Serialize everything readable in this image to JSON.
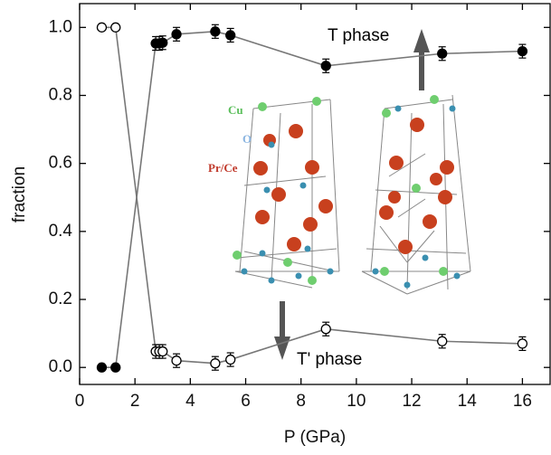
{
  "chart_data": {
    "type": "line",
    "xlabel": "P (GPa)",
    "ylabel": "fraction",
    "xlim": [
      0,
      17
    ],
    "ylim": [
      -0.05,
      1.07
    ],
    "xticks": [
      0,
      2,
      4,
      6,
      8,
      10,
      12,
      14,
      16
    ],
    "yticks": [
      {
        "value": 0,
        "label": "0.0"
      },
      {
        "value": 0.2,
        "label": "0.2"
      },
      {
        "value": 0.4,
        "label": "0.4"
      },
      {
        "value": 0.6,
        "label": "0.6"
      },
      {
        "value": 0.8,
        "label": "0.8"
      },
      {
        "value": 1.0,
        "label": "1.0"
      }
    ],
    "series": [
      {
        "color": "#000000",
        "line_color": "#777777",
        "marker": "filled",
        "x": [
          0.8,
          1.3,
          2.75,
          2.88,
          3.0,
          3.5,
          4.9,
          5.45,
          8.9,
          13.1,
          16
        ],
        "values": [
          0,
          0,
          0.953,
          0.953,
          0.955,
          0.98,
          0.988,
          0.977,
          0.887,
          0.923,
          0.93
        ],
        "errors": [
          null,
          null,
          0.02,
          0.02,
          0.02,
          0.02,
          0.02,
          0.02,
          0.02,
          0.02,
          0.02
        ]
      },
      {
        "color": "#000000",
        "line_color": "#777777",
        "marker": "open",
        "x": [
          0.8,
          1.3,
          2.75,
          2.88,
          3.0,
          3.5,
          4.9,
          5.45,
          8.9,
          13.1,
          16
        ],
        "values": [
          1.0,
          1.0,
          0.047,
          0.047,
          0.047,
          0.02,
          0.012,
          0.023,
          0.113,
          0.077,
          0.07
        ],
        "errors": [
          null,
          null,
          0.02,
          0.02,
          0.02,
          0.02,
          0.02,
          0.02,
          0.02,
          0.02,
          0.02
        ]
      }
    ],
    "annotations": [
      {
        "text": "T phase",
        "color": "#000000"
      },
      {
        "text": "T' phase",
        "color": "#000000"
      },
      {
        "text": "Cu",
        "color": "#5cbf5c"
      },
      {
        "text": "O",
        "color": "#8ab4e0"
      },
      {
        "text": "Pr/Ce",
        "color": "#c0392b"
      }
    ]
  }
}
